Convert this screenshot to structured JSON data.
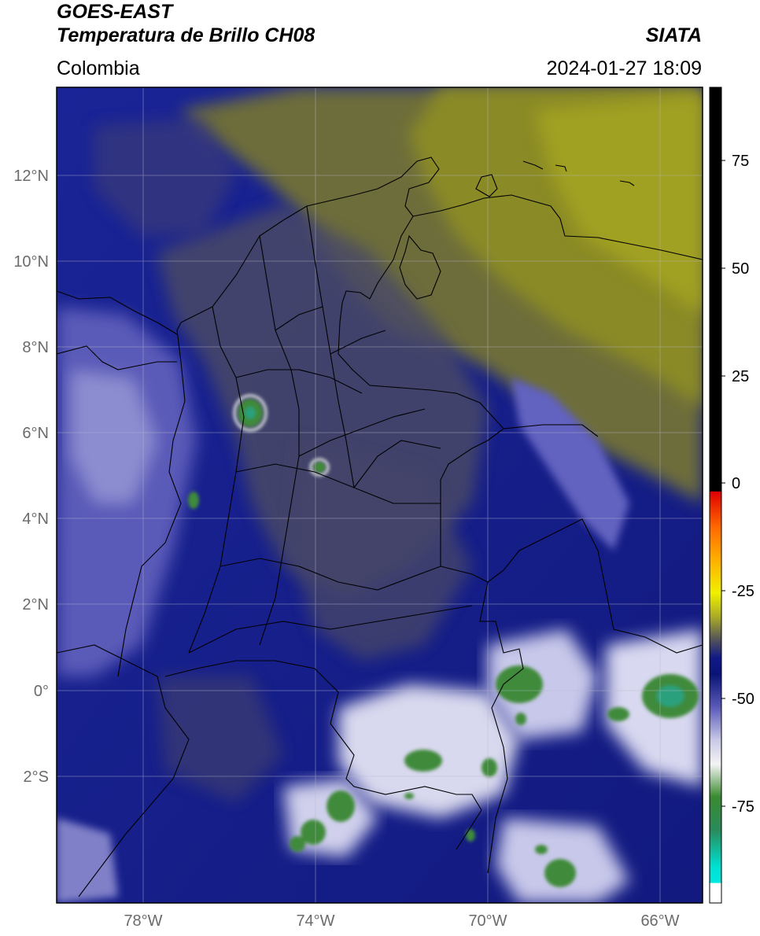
{
  "header": {
    "satellite": "GOES-EAST",
    "product": "Temperatura de Brillo CH08",
    "region": "Colombia",
    "organization": "SIATA",
    "datetime": "2024-01-27 18:09"
  },
  "map": {
    "lon_range": [
      -80,
      -65
    ],
    "lat_range": [
      -5,
      14
    ],
    "lat_ticks": [
      "12°N",
      "10°N",
      "8°N",
      "6°N",
      "4°N",
      "2°N",
      "0°",
      "2°S"
    ],
    "lon_ticks": [
      "78°W",
      "74°W",
      "70°W",
      "66°W"
    ],
    "gridlines": true
  },
  "colorbar": {
    "ticks": [
      "75",
      "50",
      "25",
      "0",
      "-25",
      "-50",
      "-75"
    ],
    "range": [
      -95,
      90
    ],
    "colors": {
      "warm_black": "#000000",
      "red": "#ff1a00",
      "orange": "#ff9900",
      "yellow": "#e6e600",
      "olive": "#8a8a20",
      "navy": "#0d1580",
      "blue": "#3a3aa8",
      "white": "#f0f0f0",
      "green": "#2e8b2e",
      "cyan": "#00e0d0"
    }
  }
}
